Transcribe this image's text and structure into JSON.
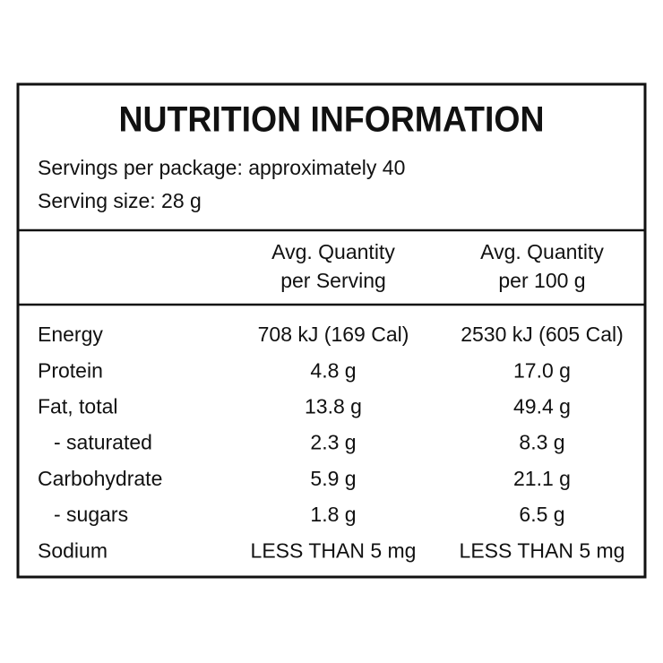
{
  "title": "NUTRITION INFORMATION",
  "servings": [
    "Servings per package: approximately 40",
    "Serving size: 28 g"
  ],
  "table": {
    "header": [
      [
        "Avg. Quantity",
        "per Serving"
      ],
      [
        "Avg. Quantity",
        "per 100 g"
      ]
    ],
    "rows": [
      [
        "Energy",
        "708 kJ (169 Cal)",
        "2530 kJ (605 Cal)"
      ],
      [
        "Protein",
        "4.8 g",
        "17.0 g"
      ],
      [
        "Fat, total",
        "13.8 g",
        "49.4 g"
      ],
      [
        "- saturated",
        "2.3 g",
        "8.3 g"
      ],
      [
        "Carbohydrate",
        "5.9 g",
        "21.1 g"
      ],
      [
        "- sugars",
        "1.8 g",
        "6.5 g"
      ],
      [
        "Sodium",
        "LESS THAN 5 mg",
        "LESS THAN 5 mg"
      ]
    ]
  }
}
